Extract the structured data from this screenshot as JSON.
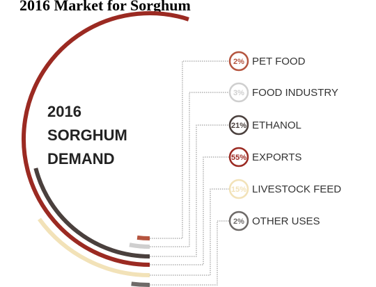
{
  "chart_data": {
    "type": "radial",
    "title": "2016 Market for Sorghum",
    "annotations": [
      "2016",
      "SORGHUM",
      "DEMAND"
    ],
    "categories": [
      "PET FOOD",
      "FOOD INDUSTRY",
      "ETHANOL",
      "EXPORTS",
      "LIVESTOCK FEED",
      "OTHER USES"
    ],
    "values": [
      2,
      3,
      21,
      55,
      15,
      2
    ],
    "value_labels": [
      "2%",
      "3%",
      "21%",
      "55%",
      "15%",
      "2%"
    ],
    "colors": [
      "#b5553f",
      "#cfcfcf",
      "#4a403d",
      "#9b2a22",
      "#f2e2b8",
      "#6e6a68"
    ]
  }
}
